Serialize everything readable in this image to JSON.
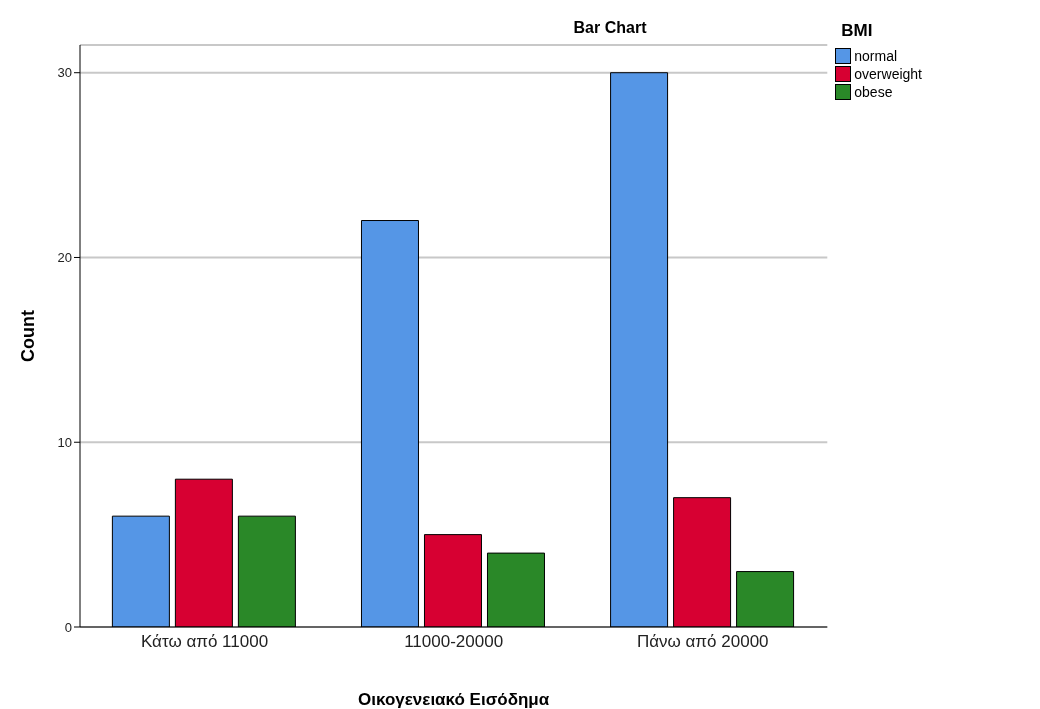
{
  "chart_data": {
    "type": "bar",
    "title": "Bar Chart",
    "xlabel": "Οικογενειακό Εισόδημα",
    "ylabel": "Count",
    "legend_title": "BMI",
    "categories": [
      "Κάτω από 11000",
      "11000-20000",
      "Πάνω από 20000"
    ],
    "series": [
      {
        "name": "normal",
        "color": "#5596e6",
        "values": [
          6,
          22,
          30
        ]
      },
      {
        "name": "overweight",
        "color": "#d70032",
        "values": [
          8,
          5,
          7
        ]
      },
      {
        "name": "obese",
        "color": "#2a8828",
        "values": [
          6,
          4,
          3
        ]
      }
    ],
    "ylim": [
      0,
      31.5
    ],
    "yticks": [
      0,
      10,
      20,
      30
    ],
    "grid": "y",
    "legend": "top right"
  }
}
